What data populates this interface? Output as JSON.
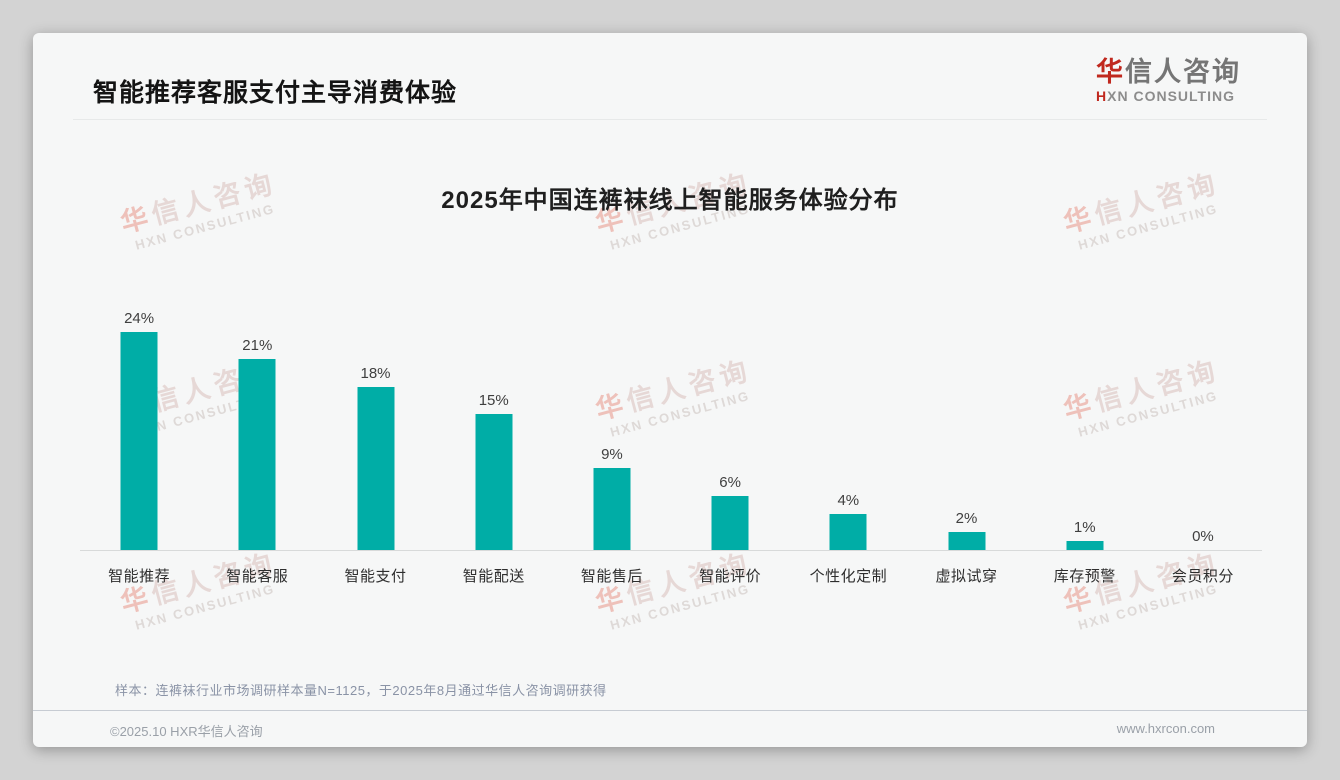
{
  "header": {
    "title": "智能推荐客服支付主导消费体验",
    "logo": {
      "cn_accent": "华",
      "cn_rest": "信人咨询",
      "en_accent": "H",
      "en_rest": "XN CONSULTING"
    }
  },
  "watermark": {
    "cn_accent": "华",
    "cn_rest": "信人咨询",
    "en": "HXN CONSULTING"
  },
  "chart_data": {
    "type": "bar",
    "title": "2025年中国连裤袜线上智能服务体验分布",
    "categories": [
      "智能推荐",
      "智能客服",
      "智能支付",
      "智能配送",
      "智能售后",
      "智能评价",
      "个性化定制",
      "虚拟试穿",
      "库存预警",
      "会员积分"
    ],
    "values": [
      24,
      21,
      18,
      15,
      9,
      6,
      4,
      2,
      1,
      0
    ],
    "value_labels": [
      "24%",
      "21%",
      "18%",
      "15%",
      "9%",
      "6%",
      "4%",
      "2%",
      "1%",
      "0%"
    ],
    "unit": "%",
    "ylim": [
      0,
      25
    ],
    "xlabel": "",
    "ylabel": "",
    "grid": false,
    "legend": "none",
    "bar_color": "#00ada6",
    "axis_line_color": "#d8dada"
  },
  "note": {
    "text": "样本：连裤袜行业市场调研样本量N=1125，于2025年8月通过华信人咨询调研获得"
  },
  "footer": {
    "copyright": "©2025.10 HXR华信人咨询",
    "website": "www.hxrcon.com"
  },
  "colors": {
    "bar": "#00ada6",
    "brand_red": "#c0281e",
    "card_bg": "#f6f7f7",
    "page_bg": "#d3d3d3"
  }
}
